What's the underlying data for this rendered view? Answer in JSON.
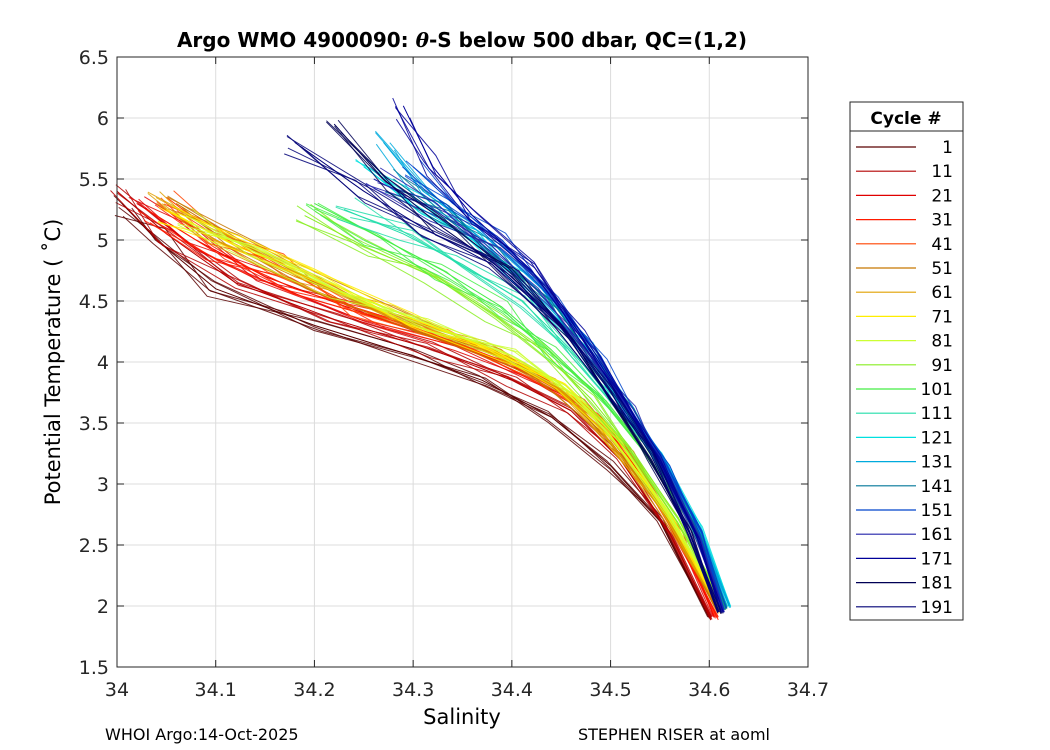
{
  "chart_data": {
    "type": "line",
    "title": "Argo WMO 4900090: θ-S below 500 dbar,  QC=(1,2)",
    "title_prefix": "Argo WMO 4900090: ",
    "title_theta": "θ",
    "title_suffix": "-S below 500 dbar,  QC=(1,2)",
    "xlabel": "Salinity",
    "ylabel": "Potential Temperature ( ˚C)",
    "xlim": [
      34.0,
      34.7
    ],
    "ylim": [
      1.5,
      6.5
    ],
    "xticks": [
      34,
      34.1,
      34.2,
      34.3,
      34.4,
      34.5,
      34.6,
      34.7
    ],
    "xtick_labels": [
      "34",
      "34.1",
      "34.2",
      "34.3",
      "34.4",
      "34.5",
      "34.6",
      "34.7"
    ],
    "yticks": [
      1.5,
      2,
      2.5,
      3,
      3.5,
      4,
      4.5,
      5,
      5.5,
      6,
      6.5
    ],
    "ytick_labels": [
      "1.5",
      "2",
      "2.5",
      "3",
      "3.5",
      "4",
      "4.5",
      "5",
      "5.5",
      "6",
      "6.5"
    ],
    "grid": true,
    "legend_position": "right",
    "legend_title": "Cycle #",
    "legend": [
      {
        "label": "1",
        "color": "#5a0000"
      },
      {
        "label": "11",
        "color": "#b40000"
      },
      {
        "label": "21",
        "color": "#e00000"
      },
      {
        "label": "31",
        "color": "#ff1a00"
      },
      {
        "label": "41",
        "color": "#ff4400"
      },
      {
        "label": "51",
        "color": "#c87800"
      },
      {
        "label": "61",
        "color": "#e0a000"
      },
      {
        "label": "71",
        "color": "#ffee00"
      },
      {
        "label": "81",
        "color": "#ccff33"
      },
      {
        "label": "91",
        "color": "#88ee22"
      },
      {
        "label": "101",
        "color": "#44ee44"
      },
      {
        "label": "111",
        "color": "#22ddaa"
      },
      {
        "label": "121",
        "color": "#00e0e0"
      },
      {
        "label": "131",
        "color": "#00aadd"
      },
      {
        "label": "141",
        "color": "#007799"
      },
      {
        "label": "151",
        "color": "#0044cc"
      },
      {
        "label": "161",
        "color": "#2222aa"
      },
      {
        "label": "171",
        "color": "#000099"
      },
      {
        "label": "181",
        "color": "#000055"
      },
      {
        "label": "191",
        "color": "#000077"
      }
    ],
    "series": [
      {
        "name": "1",
        "color": "#5a0000",
        "points": [
          [
            34.005,
            5.3
          ],
          [
            34.04,
            5.0
          ],
          [
            34.1,
            4.6
          ],
          [
            34.2,
            4.3
          ],
          [
            34.3,
            4.05
          ],
          [
            34.37,
            3.85
          ],
          [
            34.44,
            3.55
          ],
          [
            34.5,
            3.15
          ],
          [
            34.55,
            2.7
          ],
          [
            34.6,
            1.9
          ]
        ]
      },
      {
        "name": "11",
        "color": "#b40000",
        "points": [
          [
            34.0,
            5.4
          ],
          [
            34.05,
            5.05
          ],
          [
            34.12,
            4.65
          ],
          [
            34.22,
            4.35
          ],
          [
            34.32,
            4.1
          ],
          [
            34.4,
            3.85
          ],
          [
            34.46,
            3.6
          ],
          [
            34.51,
            3.2
          ],
          [
            34.56,
            2.6
          ],
          [
            34.602,
            1.9
          ]
        ]
      },
      {
        "name": "21",
        "color": "#e00000",
        "points": [
          [
            34.02,
            5.3
          ],
          [
            34.08,
            5.0
          ],
          [
            34.15,
            4.7
          ],
          [
            34.25,
            4.4
          ],
          [
            34.34,
            4.15
          ],
          [
            34.42,
            3.9
          ],
          [
            34.48,
            3.6
          ],
          [
            34.52,
            3.2
          ],
          [
            34.57,
            2.6
          ],
          [
            34.605,
            1.92
          ]
        ]
      },
      {
        "name": "31",
        "color": "#ff1a00",
        "points": [
          [
            34.03,
            5.25
          ],
          [
            34.1,
            4.9
          ],
          [
            34.18,
            4.6
          ],
          [
            34.28,
            4.35
          ],
          [
            34.36,
            4.1
          ],
          [
            34.43,
            3.85
          ],
          [
            34.49,
            3.55
          ],
          [
            34.53,
            3.15
          ],
          [
            34.57,
            2.55
          ],
          [
            34.608,
            1.9
          ]
        ]
      },
      {
        "name": "41",
        "color": "#ff4400",
        "points": [
          [
            34.05,
            5.35
          ],
          [
            34.1,
            5.05
          ],
          [
            34.16,
            4.8
          ],
          [
            34.24,
            4.45
          ],
          [
            34.33,
            4.2
          ],
          [
            34.41,
            3.95
          ],
          [
            34.47,
            3.65
          ],
          [
            34.52,
            3.25
          ],
          [
            34.56,
            2.7
          ],
          [
            34.61,
            1.95
          ]
        ]
      },
      {
        "name": "51",
        "color": "#c87800",
        "points": [
          [
            34.06,
            5.3
          ],
          [
            34.12,
            5.0
          ],
          [
            34.2,
            4.65
          ],
          [
            34.3,
            4.3
          ],
          [
            34.39,
            4.05
          ],
          [
            34.45,
            3.75
          ],
          [
            34.5,
            3.35
          ],
          [
            34.55,
            2.8
          ],
          [
            34.61,
            1.95
          ]
        ]
      },
      {
        "name": "61",
        "color": "#e0a000",
        "points": [
          [
            34.04,
            5.3
          ],
          [
            34.1,
            5.0
          ],
          [
            34.18,
            4.7
          ],
          [
            34.28,
            4.4
          ],
          [
            34.37,
            4.15
          ],
          [
            34.44,
            3.85
          ],
          [
            34.49,
            3.45
          ],
          [
            34.55,
            2.8
          ],
          [
            34.612,
            1.95
          ]
        ]
      },
      {
        "name": "71",
        "color": "#ffee00",
        "points": [
          [
            34.05,
            5.25
          ],
          [
            34.12,
            4.95
          ],
          [
            34.2,
            4.7
          ],
          [
            34.3,
            4.35
          ],
          [
            34.38,
            4.1
          ],
          [
            34.45,
            3.8
          ],
          [
            34.5,
            3.4
          ],
          [
            34.56,
            2.75
          ],
          [
            34.613,
            1.95
          ]
        ]
      },
      {
        "name": "81",
        "color": "#ccff33",
        "points": [
          [
            34.07,
            5.2
          ],
          [
            34.14,
            4.9
          ],
          [
            34.22,
            4.6
          ],
          [
            34.32,
            4.3
          ],
          [
            34.4,
            4.05
          ],
          [
            34.46,
            3.75
          ],
          [
            34.51,
            3.35
          ],
          [
            34.56,
            2.75
          ],
          [
            34.615,
            1.98
          ]
        ]
      },
      {
        "name": "91",
        "color": "#88ee22",
        "points": [
          [
            34.19,
            5.2
          ],
          [
            34.25,
            4.95
          ],
          [
            34.32,
            4.7
          ],
          [
            34.38,
            4.4
          ],
          [
            34.43,
            4.1
          ],
          [
            34.48,
            3.7
          ],
          [
            34.52,
            3.3
          ],
          [
            34.57,
            2.7
          ],
          [
            34.615,
            2.0
          ]
        ]
      },
      {
        "name": "101",
        "color": "#44ee44",
        "points": [
          [
            34.2,
            5.3
          ],
          [
            34.26,
            5.05
          ],
          [
            34.33,
            4.75
          ],
          [
            34.39,
            4.45
          ],
          [
            34.44,
            4.1
          ],
          [
            34.49,
            3.7
          ],
          [
            34.53,
            3.3
          ],
          [
            34.58,
            2.7
          ],
          [
            34.617,
            2.0
          ]
        ]
      },
      {
        "name": "111",
        "color": "#22ddaa",
        "points": [
          [
            34.23,
            5.25
          ],
          [
            34.29,
            5.05
          ],
          [
            34.35,
            4.8
          ],
          [
            34.41,
            4.5
          ],
          [
            34.46,
            4.1
          ],
          [
            34.5,
            3.7
          ],
          [
            34.54,
            3.3
          ],
          [
            34.58,
            2.7
          ],
          [
            34.618,
            2.0
          ]
        ]
      },
      {
        "name": "121",
        "color": "#00e0e0",
        "points": [
          [
            34.25,
            5.6
          ],
          [
            34.3,
            5.3
          ],
          [
            34.36,
            5.0
          ],
          [
            34.42,
            4.6
          ],
          [
            34.47,
            4.1
          ],
          [
            34.51,
            3.65
          ],
          [
            34.55,
            3.25
          ],
          [
            34.59,
            2.65
          ],
          [
            34.62,
            2.0
          ]
        ]
      },
      {
        "name": "131",
        "color": "#00aadd",
        "points": [
          [
            34.27,
            5.8
          ],
          [
            34.31,
            5.4
          ],
          [
            34.37,
            5.05
          ],
          [
            34.43,
            4.6
          ],
          [
            34.48,
            4.1
          ],
          [
            34.52,
            3.6
          ],
          [
            34.55,
            3.2
          ],
          [
            34.59,
            2.6
          ],
          [
            34.62,
            2.0
          ]
        ]
      },
      {
        "name": "141",
        "color": "#007799",
        "points": [
          [
            34.28,
            5.5
          ],
          [
            34.33,
            5.2
          ],
          [
            34.38,
            4.9
          ],
          [
            34.44,
            4.5
          ],
          [
            34.48,
            4.05
          ],
          [
            34.52,
            3.6
          ],
          [
            34.55,
            3.2
          ],
          [
            34.59,
            2.6
          ],
          [
            34.618,
            1.98
          ]
        ]
      },
      {
        "name": "151",
        "color": "#0044cc",
        "points": [
          [
            34.3,
            5.6
          ],
          [
            34.34,
            5.3
          ],
          [
            34.39,
            5.0
          ],
          [
            34.44,
            4.55
          ],
          [
            34.49,
            4.05
          ],
          [
            34.52,
            3.6
          ],
          [
            34.56,
            3.15
          ],
          [
            34.59,
            2.6
          ],
          [
            34.615,
            1.97
          ]
        ]
      },
      {
        "name": "161",
        "color": "#2222aa",
        "points": [
          [
            34.26,
            5.5
          ],
          [
            34.32,
            5.25
          ],
          [
            34.38,
            4.95
          ],
          [
            34.43,
            4.55
          ],
          [
            34.48,
            4.05
          ],
          [
            34.52,
            3.6
          ],
          [
            34.55,
            3.15
          ],
          [
            34.59,
            2.55
          ],
          [
            34.614,
            1.95
          ]
        ]
      },
      {
        "name": "171",
        "color": "#000099",
        "points": [
          [
            34.29,
            6.1
          ],
          [
            34.32,
            5.6
          ],
          [
            34.36,
            5.2
          ],
          [
            34.42,
            4.75
          ],
          [
            34.47,
            4.2
          ],
          [
            34.51,
            3.7
          ],
          [
            34.55,
            3.2
          ],
          [
            34.59,
            2.55
          ],
          [
            34.612,
            1.95
          ]
        ]
      },
      {
        "name": "181",
        "color": "#000055",
        "points": [
          [
            34.22,
            5.95
          ],
          [
            34.27,
            5.5
          ],
          [
            34.33,
            5.1
          ],
          [
            34.4,
            4.7
          ],
          [
            34.46,
            4.2
          ],
          [
            34.5,
            3.7
          ],
          [
            34.54,
            3.2
          ],
          [
            34.58,
            2.6
          ],
          [
            34.61,
            1.95
          ]
        ]
      },
      {
        "name": "191",
        "color": "#000077",
        "points": [
          [
            34.18,
            5.8
          ],
          [
            34.25,
            5.4
          ],
          [
            34.31,
            5.1
          ],
          [
            34.38,
            4.8
          ],
          [
            34.45,
            4.3
          ],
          [
            34.5,
            3.75
          ],
          [
            34.54,
            3.25
          ],
          [
            34.58,
            2.6
          ],
          [
            34.61,
            1.95
          ]
        ]
      }
    ]
  },
  "footer": {
    "left": "WHOI Argo:14-Oct-2025",
    "right": "STEPHEN RISER at aoml"
  }
}
